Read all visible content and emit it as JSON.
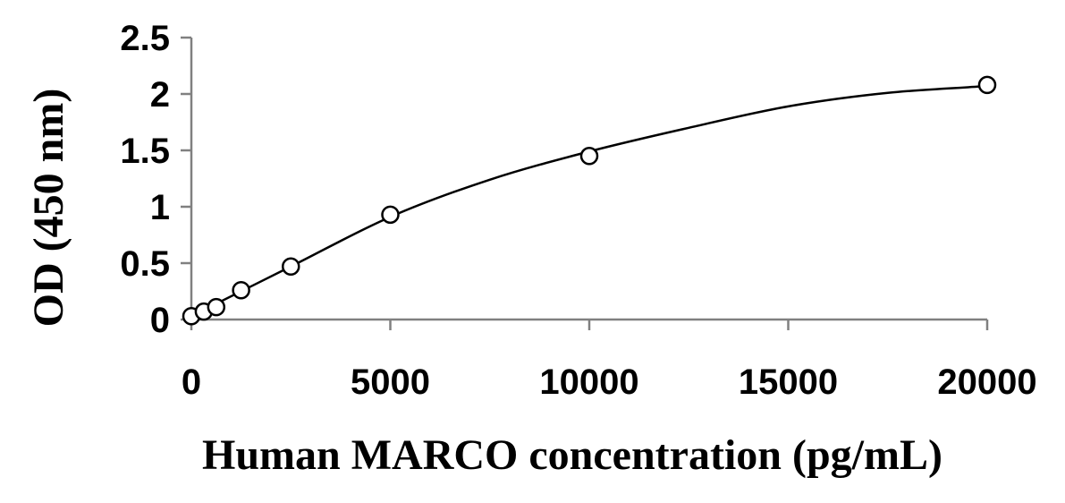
{
  "chart_data": {
    "type": "scatter",
    "title": "",
    "xlabel": "Human MARCO concentration (pg/mL)",
    "ylabel": "OD (450 nm)",
    "xlim": [
      0,
      20000
    ],
    "ylim": [
      0,
      2.5
    ],
    "x_ticks": [
      0,
      5000,
      10000,
      15000,
      20000
    ],
    "x_tick_labels": [
      "0",
      "5000",
      "10000",
      "15000",
      "20000"
    ],
    "y_ticks": [
      0,
      0.5,
      1,
      1.5,
      2,
      2.5
    ],
    "y_tick_labels": [
      "0",
      "0.5",
      "1",
      "1.5",
      "2",
      "2.5"
    ],
    "grid": false,
    "legend": "none",
    "series": [
      {
        "marker": "open-circle",
        "x": [
          0,
          312.5,
          625,
          1250,
          2500,
          5000,
          10000,
          20000
        ],
        "y": [
          0.03,
          0.07,
          0.11,
          0.26,
          0.47,
          0.93,
          1.45,
          2.08
        ]
      }
    ],
    "fit": {
      "type": "curve",
      "x": [
        0,
        2500,
        5000,
        7500,
        10000,
        12500,
        15000,
        17500,
        20000
      ],
      "y": [
        0.03,
        0.47,
        0.91,
        1.24,
        1.49,
        1.7,
        1.89,
        2.01,
        2.07
      ]
    }
  }
}
